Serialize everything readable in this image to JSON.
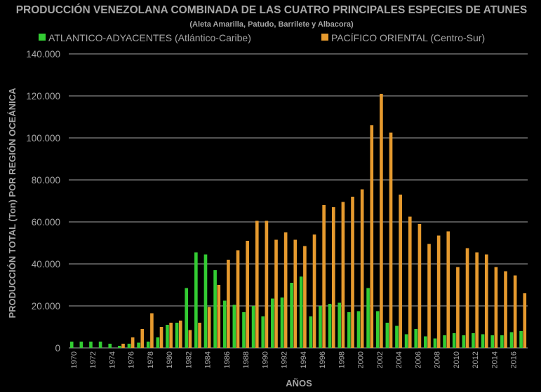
{
  "chart_data": {
    "type": "bar",
    "title": "PRODUCCIÓN VENEZOLANA COMBINADA DE LAS CUATRO PRINCIPALES ESPECIES DE ATUNES",
    "subtitle": "(Aleta Amarilla, Patudo, Barrilete y Albacora)",
    "xlabel": "AÑOS",
    "ylabel": "PRODUCCIÓN TOTAL (Ton) POR REGIÓN OCEÁNICA",
    "ylim": [
      0,
      140000
    ],
    "y_ticks": [
      "0",
      "20.000",
      "40.000",
      "60.000",
      "80.000",
      "100.000",
      "120.000",
      "140.000"
    ],
    "y_tick_values": [
      0,
      20000,
      40000,
      60000,
      80000,
      100000,
      120000,
      140000
    ],
    "grid": true,
    "legend_position": "top",
    "categories": [
      "1970",
      "1971",
      "1972",
      "1973",
      "1974",
      "1975",
      "1976",
      "1977",
      "1978",
      "1979",
      "1980",
      "1981",
      "1982",
      "1983",
      "1984",
      "1985",
      "1986",
      "1987",
      "1988",
      "1989",
      "1990",
      "1991",
      "1992",
      "1993",
      "1994",
      "1995",
      "1996",
      "1997",
      "1998",
      "1999",
      "2000",
      "2001",
      "2002",
      "2003",
      "2004",
      "2005",
      "2006",
      "2007",
      "2008",
      "2009",
      "2010",
      "2011",
      "2012",
      "2013",
      "2014",
      "2015",
      "2016",
      "2017"
    ],
    "x_tick_labels": [
      "1970",
      "1972",
      "1974",
      "1976",
      "1978",
      "1980",
      "1982",
      "1984",
      "1986",
      "1988",
      "1990",
      "1992",
      "1994",
      "1996",
      "1998",
      "2000",
      "2002",
      "2004",
      "2006",
      "2008",
      "2010",
      "2012",
      "2014",
      "2016"
    ],
    "series": [
      {
        "name": "ATLANTICO-ADYACENTES (Atlántico-Caribe)",
        "color": "#33cc33",
        "values": [
          3000,
          3000,
          3000,
          3000,
          2000,
          1000,
          2000,
          2500,
          3000,
          5000,
          11000,
          12000,
          28500,
          45500,
          44500,
          37000,
          22500,
          20500,
          17000,
          20000,
          15000,
          23500,
          24000,
          31000,
          34000,
          15000,
          20000,
          21000,
          21500,
          17000,
          17500,
          28500,
          17500,
          12000,
          10500,
          6500,
          9000,
          5500,
          4500,
          6000,
          7000,
          6000,
          7000,
          6500,
          6000,
          6000,
          7500,
          8000
        ]
      },
      {
        "name": "PACÍFICO ORIENTAL (Centro-Sur)",
        "color": "#e69a2e",
        "values": [
          0,
          0,
          0,
          0,
          0,
          2000,
          5000,
          9000,
          16500,
          10000,
          12000,
          13000,
          8500,
          12000,
          19500,
          30000,
          42000,
          46500,
          51000,
          60500,
          60500,
          51500,
          55000,
          51500,
          48500,
          54000,
          68000,
          67000,
          69500,
          72000,
          75500,
          106000,
          121000,
          102500,
          73000,
          62500,
          59000,
          49500,
          53500,
          55500,
          38500,
          47500,
          45500,
          44500,
          38500,
          36500,
          34500,
          26000
        ]
      }
    ]
  }
}
